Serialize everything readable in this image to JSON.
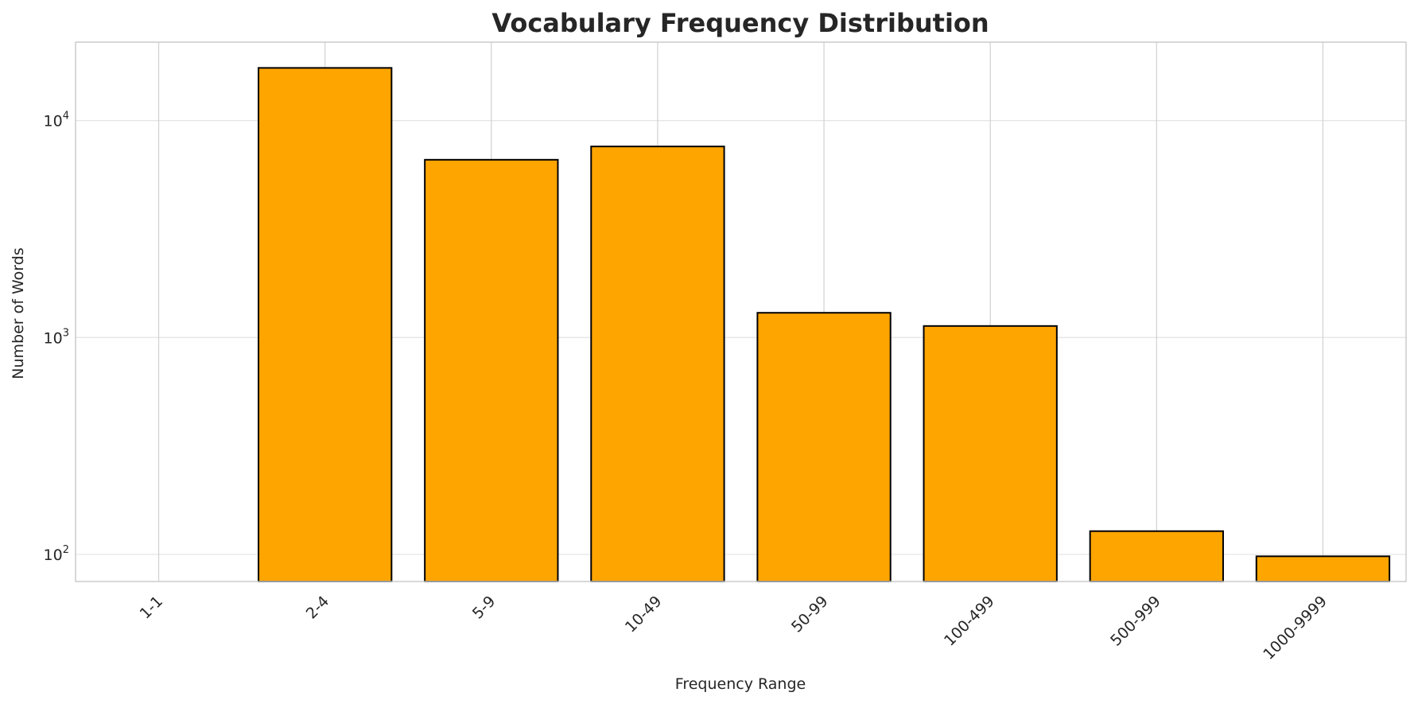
{
  "chart_data": {
    "type": "bar",
    "title": "Vocabulary Frequency Distribution",
    "xlabel": "Frequency Range",
    "ylabel": "Number of Words",
    "y_scale": "log",
    "ylim": [
      75,
      23000
    ],
    "y_ticks": [
      {
        "value": 100,
        "base": "10",
        "exp": "2"
      },
      {
        "value": 1000,
        "base": "10",
        "exp": "3"
      },
      {
        "value": 10000,
        "base": "10",
        "exp": "4"
      }
    ],
    "categories": [
      "1-1",
      "2-4",
      "5-9",
      "10-49",
      "50-99",
      "100-499",
      "500-999",
      "1000-9999"
    ],
    "values": [
      0,
      17500,
      6600,
      7600,
      1300,
      1130,
      128,
      98
    ],
    "grid": true,
    "colors": {
      "bar_fill": "#FFA500",
      "bar_edge": "#000000",
      "grid": "#e3e3e3",
      "frame": "#cccccc"
    }
  }
}
